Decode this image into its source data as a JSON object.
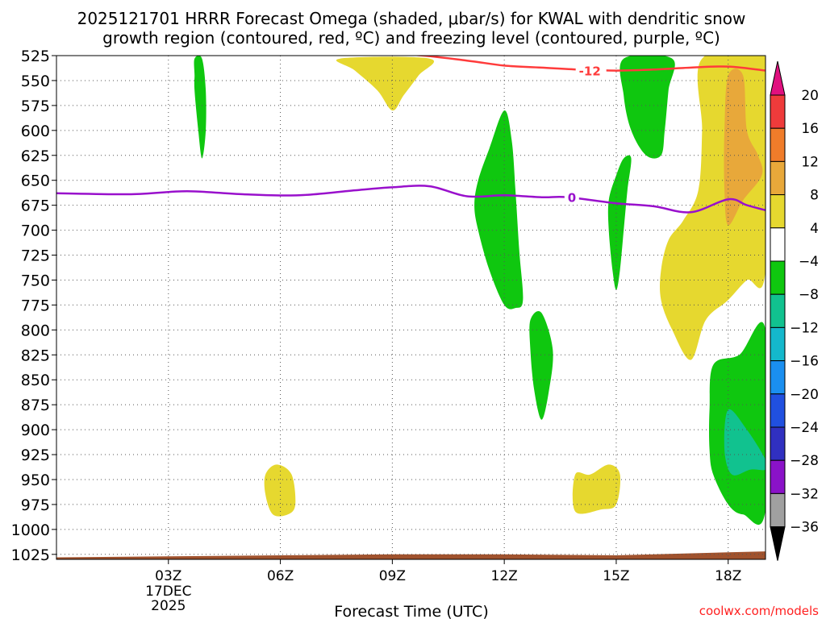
{
  "title": {
    "line1": "2025121701 HRRR Forecast Omega (shaded, μbar/s) for KWAL with dendritic snow",
    "line2": "growth region (contoured, red, ºC) and freezing level (contoured, purple, ºC)"
  },
  "footer": {
    "xlabel": "Forecast Time (UTC)",
    "credit": "coolwx.com/models"
  },
  "chart_data": {
    "type": "time-height cross section",
    "x_unit": "forecast hour (UTC, 17 DEC 2025)",
    "xlim": [
      0.0,
      19.0
    ],
    "x_ticks": [
      {
        "hour": 3,
        "label": "03Z",
        "sub": [
          "17DEC",
          "2025"
        ]
      },
      {
        "hour": 6,
        "label": "06Z"
      },
      {
        "hour": 9,
        "label": "09Z"
      },
      {
        "hour": 12,
        "label": "12Z"
      },
      {
        "hour": 15,
        "label": "15Z"
      },
      {
        "hour": 18,
        "label": "18Z"
      }
    ],
    "y_unit": "pressure (hPa)",
    "ylim": [
      1030,
      525
    ],
    "y_ticks": [
      525,
      550,
      575,
      600,
      625,
      650,
      675,
      700,
      725,
      750,
      775,
      800,
      825,
      850,
      875,
      900,
      925,
      950,
      975,
      1000,
      1025
    ],
    "grid": "dotted",
    "colorbar": {
      "labels": [
        "20",
        "16",
        "12",
        "8",
        "4",
        "−4",
        "−8",
        "−12",
        "−16",
        "−20",
        "−24",
        "−28",
        "−32",
        "−36"
      ],
      "colors": [
        "#e0107f",
        "#ef3b3b",
        "#f07c2a",
        "#e8a83a",
        "#e6d82f",
        "#ffffff",
        "#0fc70f",
        "#11c28f",
        "#14b8cc",
        "#1a8ff0",
        "#2050e0",
        "#3030c0",
        "#8a12c8",
        "#a0a0a0",
        "#000000"
      ]
    },
    "series": [
      {
        "fill": "#0fc70f",
        "points": [
          [
            3.7,
            528
          ],
          [
            3.9,
            528
          ],
          [
            4.0,
            560
          ],
          [
            4.0,
            600
          ],
          [
            3.9,
            628
          ],
          [
            3.8,
            600
          ],
          [
            3.7,
            560
          ],
          [
            3.7,
            545
          ]
        ]
      },
      {
        "fill": "#e6d82f",
        "points": [
          [
            7.6,
            528
          ],
          [
            10.0,
            528
          ],
          [
            9.7,
            545
          ],
          [
            9.3,
            565
          ],
          [
            9.0,
            580
          ],
          [
            8.6,
            560
          ],
          [
            8.0,
            540
          ]
        ]
      },
      {
        "fill": "#0fc70f",
        "points": [
          [
            11.6,
            618
          ],
          [
            12.0,
            580
          ],
          [
            12.2,
            610
          ],
          [
            12.3,
            660
          ],
          [
            12.4,
            720
          ],
          [
            12.5,
            770
          ],
          [
            12.3,
            778
          ],
          [
            12.0,
            775
          ],
          [
            11.6,
            740
          ],
          [
            11.3,
            700
          ],
          [
            11.2,
            675
          ],
          [
            11.3,
            650
          ]
        ]
      },
      {
        "fill": "#0fc70f",
        "points": [
          [
            15.2,
            628
          ],
          [
            15.4,
            628
          ],
          [
            15.3,
            660
          ],
          [
            15.2,
            700
          ],
          [
            15.1,
            740
          ],
          [
            15.0,
            760
          ],
          [
            14.9,
            740
          ],
          [
            14.8,
            700
          ],
          [
            14.8,
            670
          ],
          [
            15.0,
            645
          ]
        ]
      },
      {
        "fill": "#0fc70f",
        "points": [
          [
            15.2,
            528
          ],
          [
            16.5,
            528
          ],
          [
            16.4,
            560
          ],
          [
            16.3,
            600
          ],
          [
            16.2,
            625
          ],
          [
            15.8,
            625
          ],
          [
            15.4,
            600
          ],
          [
            15.2,
            565
          ]
        ]
      },
      {
        "fill": "#e6d82f",
        "points": [
          [
            17.3,
            528
          ],
          [
            19.0,
            528
          ],
          [
            19.0,
            740
          ],
          [
            18.5,
            750
          ],
          [
            18.0,
            770
          ],
          [
            17.4,
            790
          ],
          [
            17.0,
            830
          ],
          [
            16.5,
            800
          ],
          [
            16.2,
            770
          ],
          [
            16.2,
            740
          ],
          [
            16.4,
            710
          ],
          [
            16.8,
            690
          ],
          [
            17.2,
            660
          ],
          [
            17.3,
            600
          ]
        ]
      },
      {
        "fill": "#e8a83a",
        "points": [
          [
            18.0,
            545
          ],
          [
            18.4,
            545
          ],
          [
            18.5,
            600
          ],
          [
            18.8,
            625
          ],
          [
            18.9,
            645
          ],
          [
            18.4,
            670
          ],
          [
            18.0,
            695
          ],
          [
            17.9,
            660
          ],
          [
            17.9,
            600
          ]
        ]
      },
      {
        "fill": "#0fc70f",
        "points": [
          [
            12.7,
            790
          ],
          [
            13.0,
            783
          ],
          [
            13.3,
            820
          ],
          [
            13.2,
            860
          ],
          [
            13.0,
            890
          ],
          [
            12.8,
            860
          ],
          [
            12.7,
            820
          ]
        ]
      },
      {
        "fill": "#0fc70f",
        "points": [
          [
            17.6,
            835
          ],
          [
            18.3,
            825
          ],
          [
            19.0,
            800
          ],
          [
            19.0,
            980
          ],
          [
            18.4,
            985
          ],
          [
            18.0,
            975
          ],
          [
            17.6,
            945
          ],
          [
            17.5,
            920
          ],
          [
            17.5,
            880
          ]
        ]
      },
      {
        "fill": "#11c28f",
        "points": [
          [
            18.0,
            880
          ],
          [
            18.5,
            900
          ],
          [
            19.0,
            930
          ],
          [
            19.0,
            940
          ],
          [
            18.6,
            940
          ],
          [
            18.1,
            945
          ],
          [
            17.9,
            920
          ]
        ]
      },
      {
        "fill": "#e6d82f",
        "points": [
          [
            5.6,
            945
          ],
          [
            5.9,
            935
          ],
          [
            6.3,
            945
          ],
          [
            6.4,
            975
          ],
          [
            6.2,
            985
          ],
          [
            5.8,
            985
          ],
          [
            5.6,
            965
          ]
        ]
      },
      {
        "fill": "#e6d82f",
        "points": [
          [
            13.9,
            945
          ],
          [
            14.3,
            945
          ],
          [
            14.8,
            935
          ],
          [
            15.1,
            945
          ],
          [
            15.0,
            975
          ],
          [
            14.6,
            980
          ],
          [
            13.9,
            982
          ]
        ]
      },
      {
        "fill": "#a0522d",
        "points": [
          [
            0.0,
            1028
          ],
          [
            3.0,
            1027
          ],
          [
            6.0,
            1026
          ],
          [
            9.0,
            1025
          ],
          [
            12.0,
            1025
          ],
          [
            15.0,
            1026
          ],
          [
            18.0,
            1023
          ],
          [
            19.0,
            1022
          ],
          [
            19.0,
            1030
          ],
          [
            0.0,
            1030
          ]
        ]
      }
    ],
    "contours": [
      {
        "kind": "dendritic snow growth",
        "color": "#ff3b3b",
        "value_label": "-12",
        "label_at": [
          14.0,
          540
        ],
        "points": [
          [
            7.6,
            522
          ],
          [
            9.5,
            524
          ],
          [
            11.0,
            530
          ],
          [
            12.0,
            535
          ],
          [
            13.0,
            537
          ],
          [
            14.0,
            539
          ],
          [
            15.0,
            540
          ],
          [
            16.0,
            539
          ],
          [
            17.0,
            537
          ],
          [
            18.0,
            536
          ],
          [
            19.0,
            540
          ]
        ]
      },
      {
        "kind": "freezing level",
        "color": "#9910cc",
        "value_label": "0",
        "label_at": [
          13.7,
          667
        ],
        "points": [
          [
            0.0,
            663
          ],
          [
            2.0,
            664
          ],
          [
            3.5,
            661
          ],
          [
            5.0,
            664
          ],
          [
            6.5,
            665
          ],
          [
            8.0,
            660
          ],
          [
            9.0,
            657
          ],
          [
            10.0,
            656
          ],
          [
            11.0,
            666
          ],
          [
            12.0,
            665
          ],
          [
            13.0,
            667
          ],
          [
            13.7,
            667
          ],
          [
            15.0,
            673
          ],
          [
            16.0,
            676
          ],
          [
            17.0,
            682
          ],
          [
            18.0,
            669
          ],
          [
            18.5,
            675
          ],
          [
            19.0,
            680
          ]
        ]
      }
    ]
  }
}
